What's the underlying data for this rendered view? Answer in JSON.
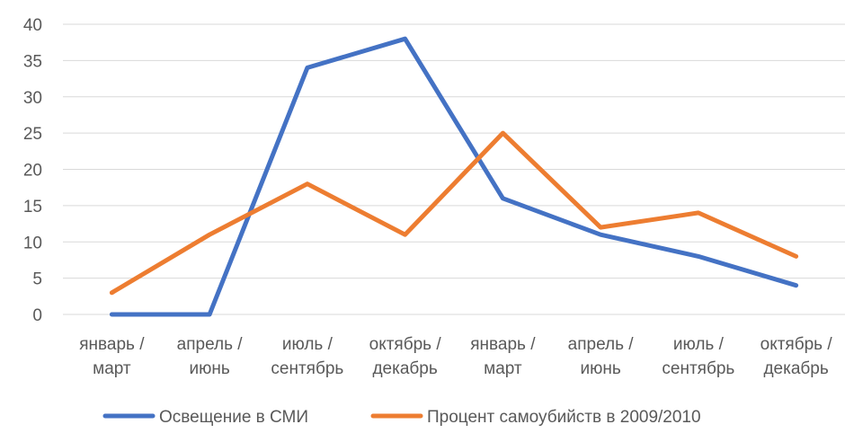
{
  "chart_data": {
    "type": "line",
    "categories": [
      [
        "январь /",
        "март"
      ],
      [
        "апрель /",
        "июнь"
      ],
      [
        "июль /",
        "сентябрь"
      ],
      [
        "октябрь /",
        "декабрь"
      ],
      [
        "январь /",
        "март"
      ],
      [
        "апрель /",
        "июнь"
      ],
      [
        "июль /",
        "сентябрь"
      ],
      [
        "октябрь /",
        "декабрь"
      ]
    ],
    "series": [
      {
        "name": "Освещение в СМИ",
        "color": "#4472C4",
        "values": [
          0,
          0,
          34,
          38,
          16,
          11,
          8,
          4
        ]
      },
      {
        "name": "Процент самоубийств в 2009/2010",
        "color": "#ED7D31",
        "values": [
          3,
          11,
          18,
          11,
          25,
          12,
          14,
          8
        ]
      }
    ],
    "ylim": [
      0,
      40
    ],
    "yticks": [
      0,
      5,
      10,
      15,
      20,
      25,
      30,
      35,
      40
    ],
    "grid": true,
    "legend_position": "bottom"
  }
}
